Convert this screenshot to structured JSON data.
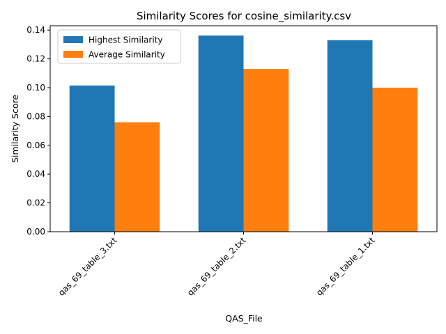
{
  "colors": {
    "series_1": "#1f77b4",
    "series_2": "#ff7f0e"
  },
  "chart_data": {
    "type": "bar",
    "title": "Similarity Scores for cosine_similarity.csv",
    "xlabel": "QAS_File",
    "ylabel": "Similarity Score",
    "categories": [
      "qas_69_table_3.txt",
      "qas_69_table_2.txt",
      "qas_69_table_1.txt"
    ],
    "series": [
      {
        "name": "Highest Similarity",
        "values": [
          0.1015,
          0.1362,
          0.133
        ]
      },
      {
        "name": "Average Similarity",
        "values": [
          0.076,
          0.113,
          0.1
        ]
      }
    ],
    "ylim": [
      0,
      0.143
    ],
    "yticks": [
      "0.00",
      "0.02",
      "0.04",
      "0.06",
      "0.08",
      "0.10",
      "0.12",
      "0.14"
    ],
    "grid": false,
    "legend": "top-left"
  }
}
